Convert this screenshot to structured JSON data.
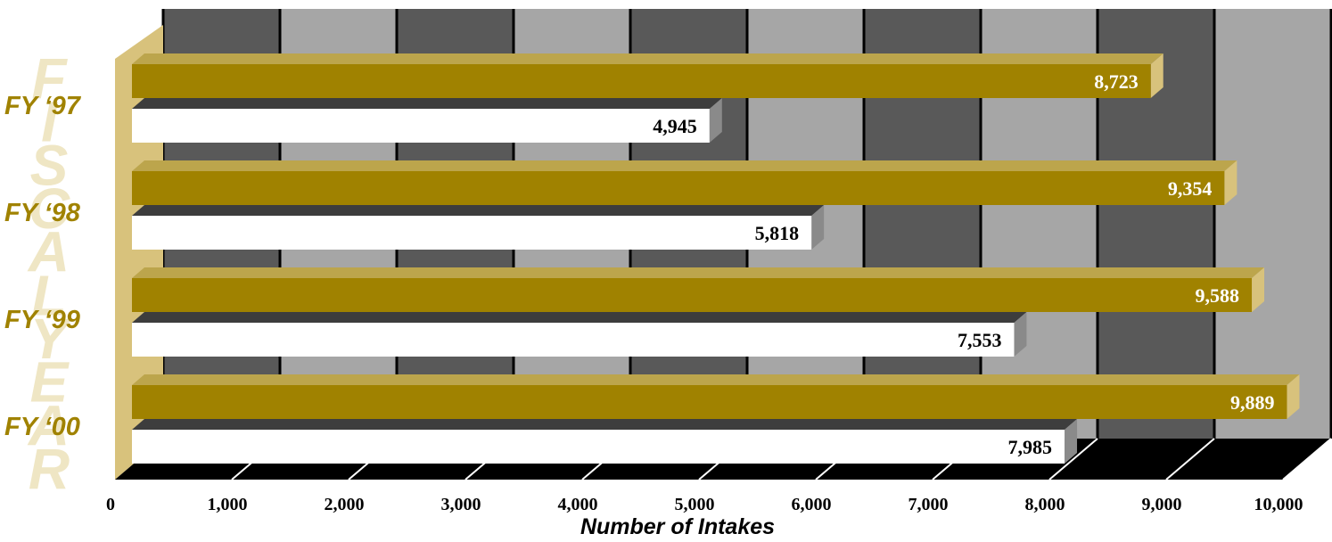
{
  "chart_data": {
    "type": "bar",
    "orientation": "horizontal",
    "categories": [
      "FY ‘97",
      "FY ‘98",
      "FY ‘99",
      "FY ‘00"
    ],
    "series": [
      {
        "values": [
          8723,
          9354,
          9588,
          9889
        ]
      },
      {
        "values": [
          4945,
          5818,
          7553,
          7985
        ]
      }
    ],
    "xlabel": "Number of Intakes",
    "ylabel": "FISCAL YEAR",
    "xlim": [
      0,
      10000
    ],
    "xticks": [
      "0",
      "1,000",
      "2,000",
      "3,000",
      "4,000",
      "5,000",
      "6,000",
      "7,000",
      "8,000",
      "9,000",
      "10,000"
    ],
    "value_labels": {
      "series_0": [
        "8,723",
        "9,354",
        "9,588",
        "9,889"
      ],
      "series_1": [
        "4,945",
        "5,818",
        "7,553",
        "7,985"
      ]
    },
    "colors": {
      "series_0": "#a08200",
      "series_0_top": "#bca54c",
      "series_0_side": "#d8c27c",
      "series_1": "#ffffff",
      "series_1_top": "#3d3d3d",
      "series_1_side": "#8a8a8a",
      "band_dark": "#595959",
      "band_light": "#a6a6a6",
      "floor": "#000000",
      "wall": "#d8c27c",
      "category_text": "#a08200",
      "ylabel_text": "#efe6c4"
    },
    "grid": true,
    "legend": "none"
  }
}
